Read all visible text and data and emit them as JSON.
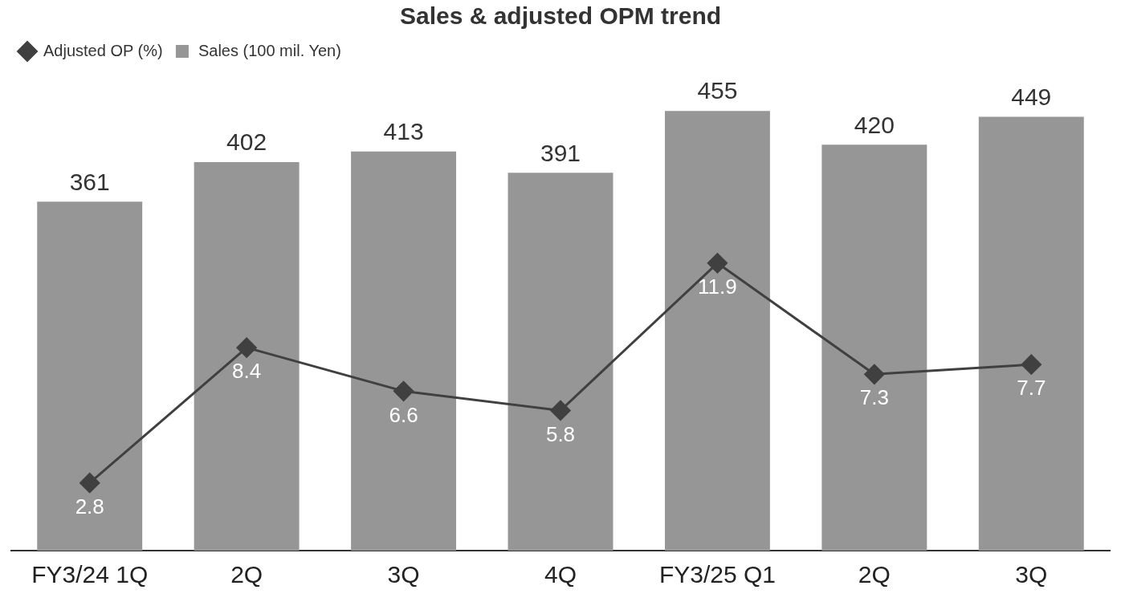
{
  "chart_data": {
    "type": "bar",
    "title": "Sales & adjusted OPM trend",
    "categories": [
      "FY3/24 1Q",
      "2Q",
      "3Q",
      "4Q",
      "FY3/25 Q1",
      "2Q",
      "3Q"
    ],
    "series": [
      {
        "name": "Adjusted OP (%)",
        "type": "line",
        "axis": "y2",
        "color": "#404040",
        "values": [
          2.8,
          8.4,
          6.6,
          5.8,
          11.9,
          7.3,
          7.7
        ]
      },
      {
        "name": "Sales (100 mil. Yen)",
        "type": "bar",
        "color": "#969696",
        "values": [
          361,
          402,
          413,
          391,
          455,
          420,
          449
        ]
      }
    ],
    "tick_labels": "x",
    "data_labels": true,
    "grid": false,
    "legend": "top left",
    "marker": "diamond",
    "line_style": "solid"
  }
}
